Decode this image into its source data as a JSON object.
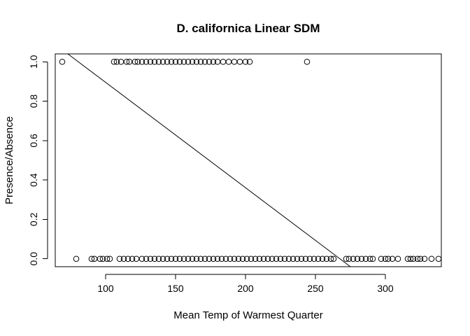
{
  "chart_data": {
    "type": "scatter",
    "title": "D. californica Linear SDM",
    "xlabel": "Mean Temp of Warmest Quarter",
    "ylabel": "Presence/Absence",
    "xlim": [
      64,
      340
    ],
    "ylim": [
      -0.04,
      1.04
    ],
    "x_ticks": [
      100,
      150,
      200,
      250,
      300
    ],
    "x_tick_labels": [
      "100",
      "150",
      "200",
      "250",
      "300"
    ],
    "y_ticks": [
      0.0,
      0.2,
      0.4,
      0.6,
      0.8,
      1.0
    ],
    "y_tick_labels": [
      "0.0",
      "0.2",
      "0.4",
      "0.6",
      "0.8",
      "1.0"
    ],
    "grid": false,
    "legend": "none",
    "series": [
      {
        "marker": "open-circle",
        "points": [
          {
            "x": 69,
            "y": 1
          },
          {
            "x": 106,
            "y": 1
          },
          {
            "x": 108,
            "y": 1
          },
          {
            "x": 111,
            "y": 1
          },
          {
            "x": 115,
            "y": 1
          },
          {
            "x": 117,
            "y": 1
          },
          {
            "x": 121,
            "y": 1
          },
          {
            "x": 123,
            "y": 1
          },
          {
            "x": 126,
            "y": 1
          },
          {
            "x": 129,
            "y": 1
          },
          {
            "x": 132,
            "y": 1
          },
          {
            "x": 135,
            "y": 1
          },
          {
            "x": 138,
            "y": 1
          },
          {
            "x": 141,
            "y": 1
          },
          {
            "x": 144,
            "y": 1
          },
          {
            "x": 147,
            "y": 1
          },
          {
            "x": 150,
            "y": 1
          },
          {
            "x": 153,
            "y": 1
          },
          {
            "x": 156,
            "y": 1
          },
          {
            "x": 159,
            "y": 1
          },
          {
            "x": 162,
            "y": 1
          },
          {
            "x": 165,
            "y": 1
          },
          {
            "x": 168,
            "y": 1
          },
          {
            "x": 171,
            "y": 1
          },
          {
            "x": 174,
            "y": 1
          },
          {
            "x": 177,
            "y": 1
          },
          {
            "x": 180,
            "y": 1
          },
          {
            "x": 184,
            "y": 1
          },
          {
            "x": 188,
            "y": 1
          },
          {
            "x": 192,
            "y": 1
          },
          {
            "x": 196,
            "y": 1
          },
          {
            "x": 200,
            "y": 1
          },
          {
            "x": 203,
            "y": 1
          },
          {
            "x": 244,
            "y": 1
          },
          {
            "x": 79,
            "y": 0
          },
          {
            "x": 90,
            "y": 0
          },
          {
            "x": 92,
            "y": 0
          },
          {
            "x": 96,
            "y": 0
          },
          {
            "x": 98,
            "y": 0
          },
          {
            "x": 101,
            "y": 0
          },
          {
            "x": 103,
            "y": 0
          },
          {
            "x": 110,
            "y": 0
          },
          {
            "x": 113,
            "y": 0
          },
          {
            "x": 116,
            "y": 0
          },
          {
            "x": 119,
            "y": 0
          },
          {
            "x": 122,
            "y": 0
          },
          {
            "x": 126,
            "y": 0
          },
          {
            "x": 129,
            "y": 0
          },
          {
            "x": 132,
            "y": 0
          },
          {
            "x": 135,
            "y": 0
          },
          {
            "x": 138,
            "y": 0
          },
          {
            "x": 141,
            "y": 0
          },
          {
            "x": 144,
            "y": 0
          },
          {
            "x": 147,
            "y": 0
          },
          {
            "x": 150,
            "y": 0
          },
          {
            "x": 153,
            "y": 0
          },
          {
            "x": 156,
            "y": 0
          },
          {
            "x": 159,
            "y": 0
          },
          {
            "x": 162,
            "y": 0
          },
          {
            "x": 165,
            "y": 0
          },
          {
            "x": 168,
            "y": 0
          },
          {
            "x": 171,
            "y": 0
          },
          {
            "x": 174,
            "y": 0
          },
          {
            "x": 177,
            "y": 0
          },
          {
            "x": 180,
            "y": 0
          },
          {
            "x": 183,
            "y": 0
          },
          {
            "x": 186,
            "y": 0
          },
          {
            "x": 189,
            "y": 0
          },
          {
            "x": 192,
            "y": 0
          },
          {
            "x": 195,
            "y": 0
          },
          {
            "x": 198,
            "y": 0
          },
          {
            "x": 201,
            "y": 0
          },
          {
            "x": 204,
            "y": 0
          },
          {
            "x": 207,
            "y": 0
          },
          {
            "x": 210,
            "y": 0
          },
          {
            "x": 213,
            "y": 0
          },
          {
            "x": 216,
            "y": 0
          },
          {
            "x": 219,
            "y": 0
          },
          {
            "x": 222,
            "y": 0
          },
          {
            "x": 225,
            "y": 0
          },
          {
            "x": 228,
            "y": 0
          },
          {
            "x": 231,
            "y": 0
          },
          {
            "x": 234,
            "y": 0
          },
          {
            "x": 237,
            "y": 0
          },
          {
            "x": 240,
            "y": 0
          },
          {
            "x": 243,
            "y": 0
          },
          {
            "x": 246,
            "y": 0
          },
          {
            "x": 249,
            "y": 0
          },
          {
            "x": 252,
            "y": 0
          },
          {
            "x": 255,
            "y": 0
          },
          {
            "x": 258,
            "y": 0
          },
          {
            "x": 261,
            "y": 0
          },
          {
            "x": 263,
            "y": 0
          },
          {
            "x": 272,
            "y": 0
          },
          {
            "x": 274,
            "y": 0
          },
          {
            "x": 277,
            "y": 0
          },
          {
            "x": 280,
            "y": 0
          },
          {
            "x": 283,
            "y": 0
          },
          {
            "x": 286,
            "y": 0
          },
          {
            "x": 289,
            "y": 0
          },
          {
            "x": 291,
            "y": 0
          },
          {
            "x": 297,
            "y": 0
          },
          {
            "x": 300,
            "y": 0
          },
          {
            "x": 302,
            "y": 0
          },
          {
            "x": 305,
            "y": 0
          },
          {
            "x": 309,
            "y": 0
          },
          {
            "x": 316,
            "y": 0
          },
          {
            "x": 318,
            "y": 0
          },
          {
            "x": 320,
            "y": 0
          },
          {
            "x": 323,
            "y": 0
          },
          {
            "x": 325,
            "y": 0
          },
          {
            "x": 328,
            "y": 0
          },
          {
            "x": 333,
            "y": 0
          },
          {
            "x": 338,
            "y": 0
          }
        ]
      }
    ],
    "fit_line": {
      "type": "linear",
      "points": [
        {
          "x": 73,
          "y": 1.04
        },
        {
          "x": 275,
          "y": -0.04
        }
      ]
    }
  }
}
